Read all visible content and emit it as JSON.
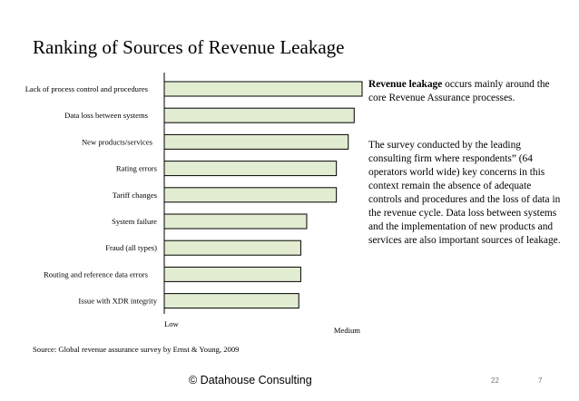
{
  "slide": {
    "title": "Ranking of Sources of Revenue Leakage",
    "desc_bold": "Revenue leakage",
    "desc_rest": " occurs mainly around the core Revenue Assurance processes.",
    "desc_para2": "The survey conducted by the leading consulting firm where respondents” (64 operators world wide) key concerns in this context remain the absence of adequate controls and procedures and the loss of data in the revenue cycle. Data loss between systems and the implementation of new products and services are also important sources of leakage.",
    "source": "Source:   Global revenue assurance survey by Ernst & Young, 2009",
    "footer": "© Datahouse Consulting",
    "page_number": "22",
    "slide_number": "7"
  },
  "chart_data": {
    "type": "bar",
    "orientation": "horizontal",
    "categories": [
      "Lack of process control and procedures",
      "Data loss between systems",
      "New products/services",
      "Rating errors",
      "Tariff changes",
      "System failure",
      "Fraud (all types)",
      "Routing and reference data errors",
      "Issue with XDR integrity"
    ],
    "values": [
      1.0,
      0.96,
      0.93,
      0.87,
      0.87,
      0.72,
      0.69,
      0.69,
      0.68
    ],
    "xscale": [
      "Low",
      "Medium"
    ],
    "xlim": [
      0,
      1
    ],
    "bar_color": "#e2ecd1",
    "bar_border": "#000000",
    "grid": false,
    "legend": "none"
  }
}
